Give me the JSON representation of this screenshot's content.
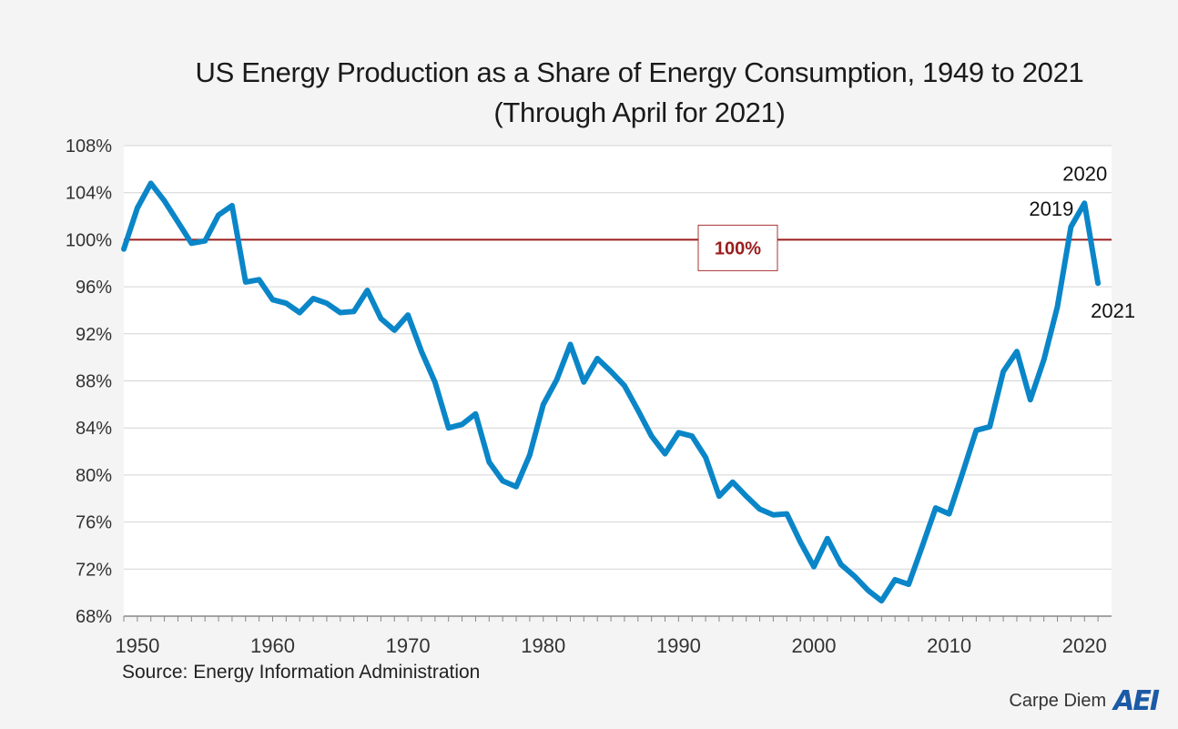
{
  "chart_data": {
    "type": "line",
    "title": "US Energy Production as a Share of Energy Consumption, 1949 to 2021",
    "subtitle": "(Through April for 2021)",
    "xlabel": "",
    "ylabel": "",
    "x_ticks": [
      "1950",
      "1960",
      "1970",
      "1980",
      "1990",
      "2000",
      "2010",
      "2020"
    ],
    "y_ticks": [
      "68%",
      "72%",
      "76%",
      "80%",
      "84%",
      "88%",
      "92%",
      "96%",
      "100%",
      "104%",
      "108%"
    ],
    "xlim": [
      1949,
      2022
    ],
    "ylim": [
      68,
      108
    ],
    "grid": true,
    "series": [
      {
        "color": "#0a86c8",
        "x": [
          1949,
          1950,
          1951,
          1952,
          1953,
          1954,
          1955,
          1956,
          1957,
          1958,
          1959,
          1960,
          1961,
          1962,
          1963,
          1964,
          1965,
          1966,
          1967,
          1968,
          1969,
          1970,
          1971,
          1972,
          1973,
          1974,
          1975,
          1976,
          1977,
          1978,
          1979,
          1980,
          1981,
          1982,
          1983,
          1984,
          1985,
          1986,
          1987,
          1988,
          1989,
          1990,
          1991,
          1992,
          1993,
          1994,
          1995,
          1996,
          1997,
          1998,
          1999,
          2000,
          2001,
          2002,
          2003,
          2004,
          2005,
          2006,
          2007,
          2008,
          2009,
          2010,
          2011,
          2012,
          2013,
          2014,
          2015,
          2016,
          2017,
          2018,
          2019,
          2020,
          2021
        ],
        "values": [
          99.2,
          102.7,
          104.8,
          103.3,
          101.5,
          99.7,
          99.9,
          102.1,
          102.9,
          96.4,
          96.6,
          94.9,
          94.6,
          93.8,
          95.0,
          94.6,
          93.8,
          93.9,
          95.7,
          93.3,
          92.3,
          93.6,
          90.5,
          87.9,
          84.0,
          84.3,
          85.2,
          81.1,
          79.5,
          79.0,
          81.7,
          86.0,
          88.1,
          91.1,
          87.9,
          89.9,
          88.8,
          87.6,
          85.5,
          83.3,
          81.8,
          83.6,
          83.3,
          81.5,
          78.2,
          79.4,
          78.2,
          77.1,
          76.6,
          76.7,
          74.3,
          72.2,
          74.6,
          72.4,
          71.4,
          70.2,
          69.3,
          71.1,
          70.7,
          73.9,
          77.2,
          76.7,
          80.2,
          83.8,
          84.1,
          88.8,
          90.5,
          86.4,
          89.8,
          94.3,
          101.1,
          103.1,
          96.3
        ]
      }
    ],
    "reference_line": {
      "value": 100,
      "label": "100%",
      "color": "#9b1d1d"
    },
    "annotations": [
      {
        "text": "2019",
        "x": 2019,
        "y": 101.1
      },
      {
        "text": "2020",
        "x": 2020,
        "y": 103.1
      },
      {
        "text": "2021",
        "x": 2021,
        "y": 96.3
      }
    ]
  },
  "source": "Source: Energy Information Administration",
  "brand": {
    "text": "Carpe Diem",
    "logo": "AEI"
  }
}
